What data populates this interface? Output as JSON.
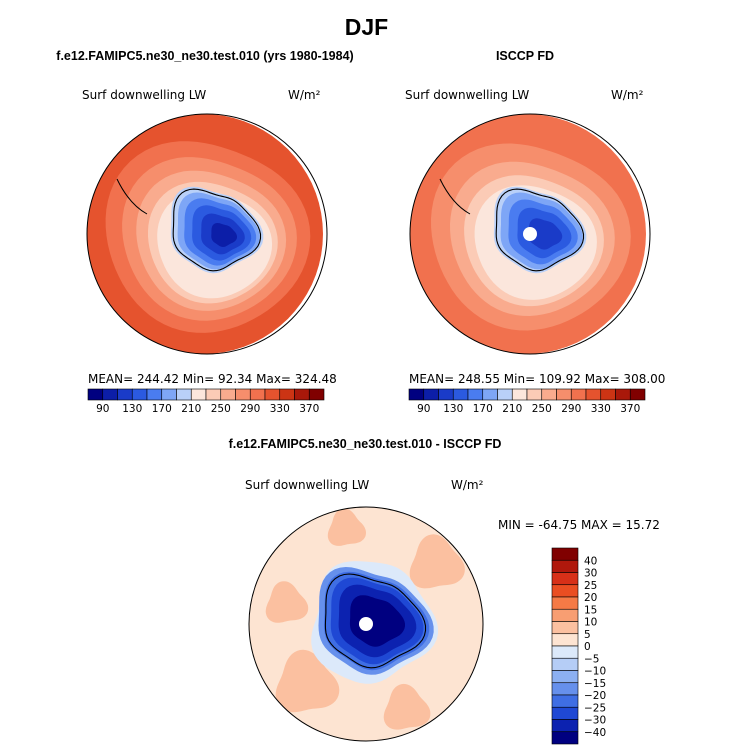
{
  "page": {
    "title": "DJF"
  },
  "panels": [
    {
      "title": "f.e12.FAMIPC5.ne30_ne30.test.010 (yrs 1980-1984)",
      "variable": "Surf downwelling LW",
      "units": "W/m²",
      "stats_text": "MEAN= 244.42   Min=  92.34   Max= 324.48",
      "has_pole_hole": false
    },
    {
      "title": "ISCCP FD",
      "variable": "Surf downwelling LW",
      "units": "W/m²",
      "stats_text": "MEAN= 248.55   Min= 109.92   Max= 308.00",
      "has_pole_hole": true
    }
  ],
  "diff_panel": {
    "title": "f.e12.FAMIPC5.ne30_ne30.test.010 - ISCCP FD",
    "variable": "Surf downwelling LW",
    "units": "W/m²",
    "minmax_text": "MIN = -64.75 MAX =  15.72",
    "has_pole_hole": true
  },
  "chart_data": [
    {
      "type": "heatmap",
      "projection": "south polar stereographic",
      "title": "f.e12.FAMIPC5.ne30_ne30.test.010 (yrs 1980-1984)",
      "variable": "Surf downwelling LW",
      "units": "W/m²",
      "mean": 244.42,
      "min": 92.34,
      "max": 324.48,
      "contour_levels": [
        90,
        110,
        130,
        150,
        170,
        190,
        210,
        230,
        250,
        270,
        290,
        310,
        330,
        350,
        370
      ],
      "colorbar_labels": [
        "90",
        "130",
        "170",
        "210",
        "250",
        "290",
        "330",
        "370"
      ],
      "colors": [
        "#000080",
        "#0c1ea8",
        "#1a3bc8",
        "#2b5ae0",
        "#4a7cf0",
        "#7ea6f6",
        "#b9d0f8",
        "#fbe6dc",
        "#fbcbb6",
        "#f9ab8e",
        "#f68e6c",
        "#f1714e",
        "#e5532e",
        "#cc3414",
        "#a9180a",
        "#800000"
      ]
    },
    {
      "type": "heatmap",
      "projection": "south polar stereographic",
      "title": "ISCCP FD",
      "variable": "Surf downwelling LW",
      "units": "W/m²",
      "mean": 248.55,
      "min": 109.92,
      "max": 308.0,
      "contour_levels": [
        90,
        110,
        130,
        150,
        170,
        190,
        210,
        230,
        250,
        270,
        290,
        310,
        330,
        350,
        370
      ],
      "colorbar_labels": [
        "90",
        "130",
        "170",
        "210",
        "250",
        "290",
        "330",
        "370"
      ],
      "colors": [
        "#000080",
        "#0c1ea8",
        "#1a3bc8",
        "#2b5ae0",
        "#4a7cf0",
        "#7ea6f6",
        "#b9d0f8",
        "#fbe6dc",
        "#fbcbb6",
        "#f9ab8e",
        "#f68e6c",
        "#f1714e",
        "#e5532e",
        "#cc3414",
        "#a9180a",
        "#800000"
      ]
    },
    {
      "type": "heatmap",
      "projection": "south polar stereographic",
      "title": "f.e12.FAMIPC5.ne30_ne30.test.010 - ISCCP FD",
      "variable": "Surf downwelling LW",
      "units": "W/m²",
      "min": -64.75,
      "max": 15.72,
      "contour_levels": [
        -40,
        -30,
        -25,
        -20,
        -15,
        -10,
        -5,
        0,
        5,
        10,
        15,
        20,
        25,
        30,
        40
      ],
      "colorbar_labels": [
        "40",
        "30",
        "25",
        "20",
        "15",
        "10",
        "5",
        "0",
        "−5",
        "−10",
        "−15",
        "−20",
        "−25",
        "−30",
        "−40"
      ],
      "colors": [
        "#800000",
        "#b0180c",
        "#d73018",
        "#ea4e22",
        "#f57a46",
        "#f89e72",
        "#fbc0a0",
        "#fde4d2",
        "#dce9fa",
        "#b5cdf6",
        "#8cb0f2",
        "#6690ec",
        "#3f6ee4",
        "#1f48d4",
        "#0c22b0",
        "#000080"
      ]
    }
  ]
}
